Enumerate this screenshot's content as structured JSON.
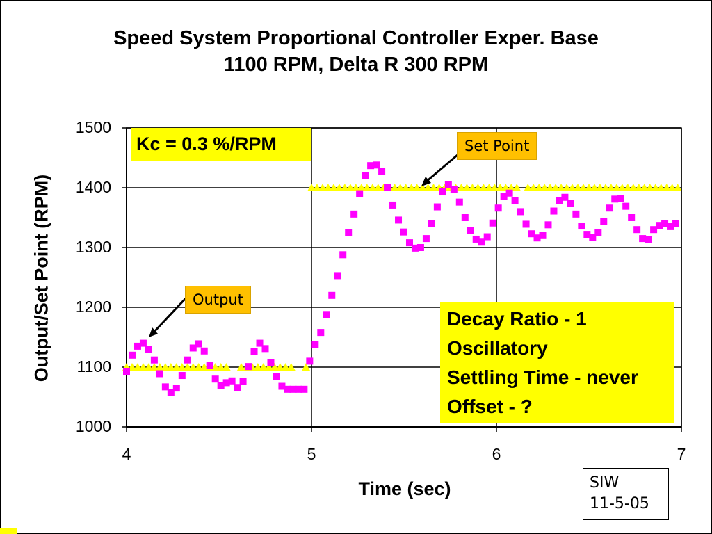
{
  "chart_data": {
    "type": "scatter",
    "title": "Speed System Proportional Controller Exper. Base",
    "subtitle": "1100 RPM, Delta R 300 RPM",
    "xlabel": "Time (sec)",
    "ylabel": "Output/Set Point (RPM)",
    "xlim": [
      4,
      7
    ],
    "ylim": [
      1000,
      1500
    ],
    "x_ticks": [
      "4",
      "5",
      "6",
      "7"
    ],
    "y_ticks": [
      "1000",
      "1100",
      "1200",
      "1300",
      "1400",
      "1500"
    ],
    "grid": "major gridlines on both axes",
    "series": [
      {
        "color": "#ff00ff",
        "marker": "square",
        "x": [
          4.0,
          4.03,
          4.06,
          4.09,
          4.12,
          4.15,
          4.18,
          4.21,
          4.24,
          4.27,
          4.3,
          4.33,
          4.36,
          4.39,
          4.42,
          4.45,
          4.48,
          4.51,
          4.54,
          4.57,
          4.6,
          4.63,
          4.66,
          4.69,
          4.72,
          4.75,
          4.78,
          4.81,
          4.84,
          4.87,
          4.9,
          4.93,
          4.96,
          4.99,
          5.02,
          5.05,
          5.08,
          5.11,
          5.14,
          5.17,
          5.2,
          5.23,
          5.26,
          5.29,
          5.32,
          5.35,
          5.38,
          5.41,
          5.44,
          5.47,
          5.5,
          5.53,
          5.56,
          5.59,
          5.62,
          5.65,
          5.68,
          5.71,
          5.74,
          5.77,
          5.8,
          5.83,
          5.86,
          5.89,
          5.92,
          5.95,
          5.98,
          6.01,
          6.04,
          6.07,
          6.1,
          6.13,
          6.16,
          6.19,
          6.22,
          6.25,
          6.28,
          6.31,
          6.34,
          6.37,
          6.4,
          6.43,
          6.46,
          6.49,
          6.52,
          6.55,
          6.58,
          6.61,
          6.64,
          6.67,
          6.7,
          6.73,
          6.76,
          6.79,
          6.82,
          6.85,
          6.88,
          6.91,
          6.94,
          6.97
        ],
        "values": [
          1093,
          1120,
          1135,
          1140,
          1130,
          1112,
          1089,
          1067,
          1058,
          1065,
          1086,
          1112,
          1132,
          1139,
          1127,
          1103,
          1080,
          1069,
          1074,
          1077,
          1066,
          1076,
          1101,
          1126,
          1140,
          1131,
          1107,
          1084,
          1068,
          1063,
          1063,
          1063,
          1063,
          1110,
          1138,
          1158,
          1188,
          1220,
          1253,
          1288,
          1325,
          1356,
          1390,
          1420,
          1437,
          1438,
          1427,
          1401,
          1371,
          1346,
          1326,
          1308,
          1299,
          1300,
          1315,
          1340,
          1368,
          1393,
          1405,
          1397,
          1376,
          1350,
          1328,
          1314,
          1309,
          1318,
          1341,
          1366,
          1386,
          1391,
          1379,
          1360,
          1339,
          1323,
          1316,
          1320,
          1338,
          1361,
          1379,
          1384,
          1374,
          1356,
          1336,
          1322,
          1317,
          1325,
          1344,
          1366,
          1381,
          1382,
          1369,
          1350,
          1330,
          1315,
          1313,
          1330,
          1337,
          1340,
          1335,
          1340
        ]
      },
      {
        "color": "#ffff00",
        "marker": "triangle",
        "x": [
          4.0,
          4.03,
          4.06,
          4.09,
          4.12,
          4.15,
          4.18,
          4.21,
          4.24,
          4.27,
          4.3,
          4.33,
          4.36,
          4.39,
          4.42,
          4.45,
          4.48,
          4.51,
          4.54,
          4.62,
          4.65,
          4.68,
          4.71,
          4.74,
          4.77,
          4.8,
          4.83,
          4.86,
          4.89,
          4.97,
          5.0,
          5.03,
          5.06,
          5.09,
          5.12,
          5.15,
          5.18,
          5.21,
          5.24,
          5.27,
          5.3,
          5.33,
          5.36,
          5.39,
          5.42,
          5.45,
          5.48,
          5.51,
          5.54,
          5.57,
          5.6,
          5.63,
          5.66,
          5.69,
          5.72,
          5.75,
          5.78,
          5.81,
          5.84,
          5.87,
          5.9,
          5.93,
          5.96,
          5.99,
          6.02,
          6.05,
          6.08,
          6.11,
          6.17,
          6.2,
          6.23,
          6.26,
          6.29,
          6.32,
          6.35,
          6.38,
          6.41,
          6.44,
          6.47,
          6.5,
          6.53,
          6.56,
          6.59,
          6.62,
          6.65,
          6.68,
          6.71,
          6.74,
          6.77,
          6.8,
          6.83,
          6.86,
          6.89,
          6.92,
          6.95,
          6.98
        ],
        "values": [
          1100,
          1100,
          1100,
          1100,
          1100,
          1100,
          1100,
          1100,
          1100,
          1100,
          1100,
          1100,
          1100,
          1100,
          1100,
          1100,
          1100,
          1100,
          1100,
          1100,
          1100,
          1100,
          1100,
          1100,
          1100,
          1100,
          1100,
          1100,
          1100,
          1100,
          1400,
          1400,
          1400,
          1400,
          1400,
          1400,
          1400,
          1400,
          1400,
          1400,
          1400,
          1400,
          1400,
          1400,
          1400,
          1400,
          1400,
          1400,
          1400,
          1400,
          1400,
          1400,
          1400,
          1400,
          1400,
          1400,
          1400,
          1400,
          1400,
          1400,
          1400,
          1400,
          1400,
          1400,
          1400,
          1400,
          1400,
          1400,
          1400,
          1400,
          1400,
          1400,
          1400,
          1400,
          1400,
          1400,
          1400,
          1400,
          1400,
          1400,
          1400,
          1400,
          1400,
          1400,
          1400,
          1400,
          1400,
          1400,
          1400,
          1400,
          1400,
          1400,
          1400,
          1400,
          1400,
          1400
        ]
      }
    ],
    "annotations": {
      "kc": "Kc = 0.3 %/RPM",
      "setpoint_label": "Set Point",
      "output_label": "Output",
      "notes": [
        "Decay Ratio - 1",
        "Oscillatory",
        "Settling Time - never",
        "Offset - ?"
      ]
    }
  },
  "signature": {
    "name": "SIW",
    "date": "11-5-05"
  }
}
